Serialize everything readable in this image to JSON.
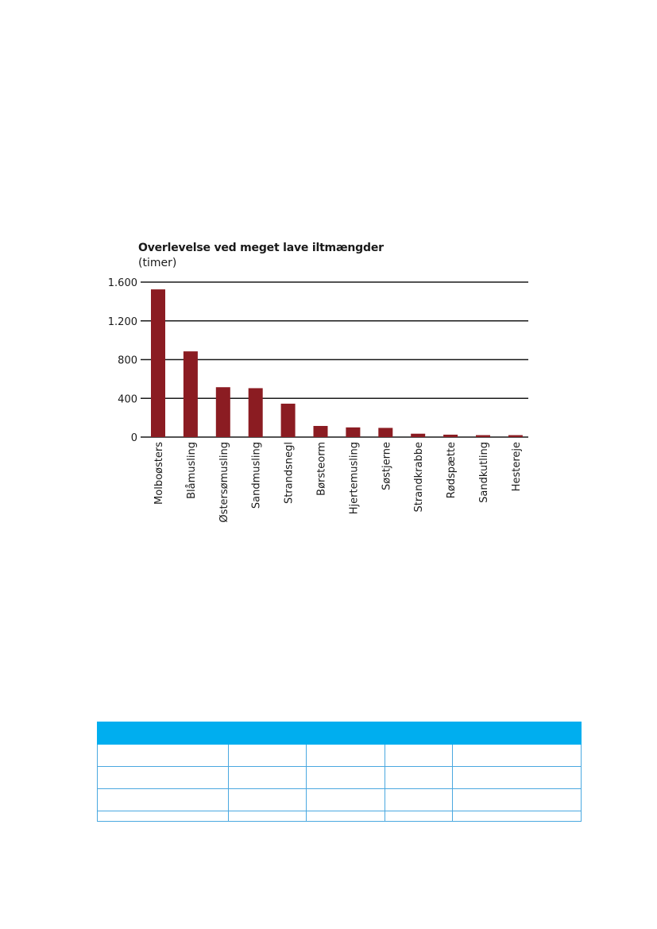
{
  "chart_data": {
    "type": "bar",
    "title": "Overlevelse ved meget lave iltmængder",
    "ylabel": "(timer)",
    "xlabel": "",
    "categories": [
      "Molboøsters",
      "Blåmusling",
      "Østersømusling",
      "Sandmusling",
      "Strandsnegl",
      "Børsteorm",
      "Hjertemusling",
      "Søstjerne",
      "Strandkrabbe",
      "Rødspætte",
      "Sandkutling",
      "Hestereje"
    ],
    "values": [
      1525,
      885,
      515,
      505,
      345,
      115,
      100,
      95,
      35,
      25,
      20,
      20
    ],
    "ylim": [
      0,
      1600
    ],
    "yticks": [
      0,
      400,
      800,
      1200,
      1600
    ],
    "ytick_labels": [
      "0",
      "400",
      "800",
      "1.200",
      "1.600"
    ],
    "grid": true,
    "colors": {
      "bar": "#8b1c22",
      "grid": "#1a1a1a"
    }
  },
  "table": {
    "header_color": "#00aeef",
    "border_color": "#4aa8e0",
    "columns": 5,
    "rows": 4
  }
}
